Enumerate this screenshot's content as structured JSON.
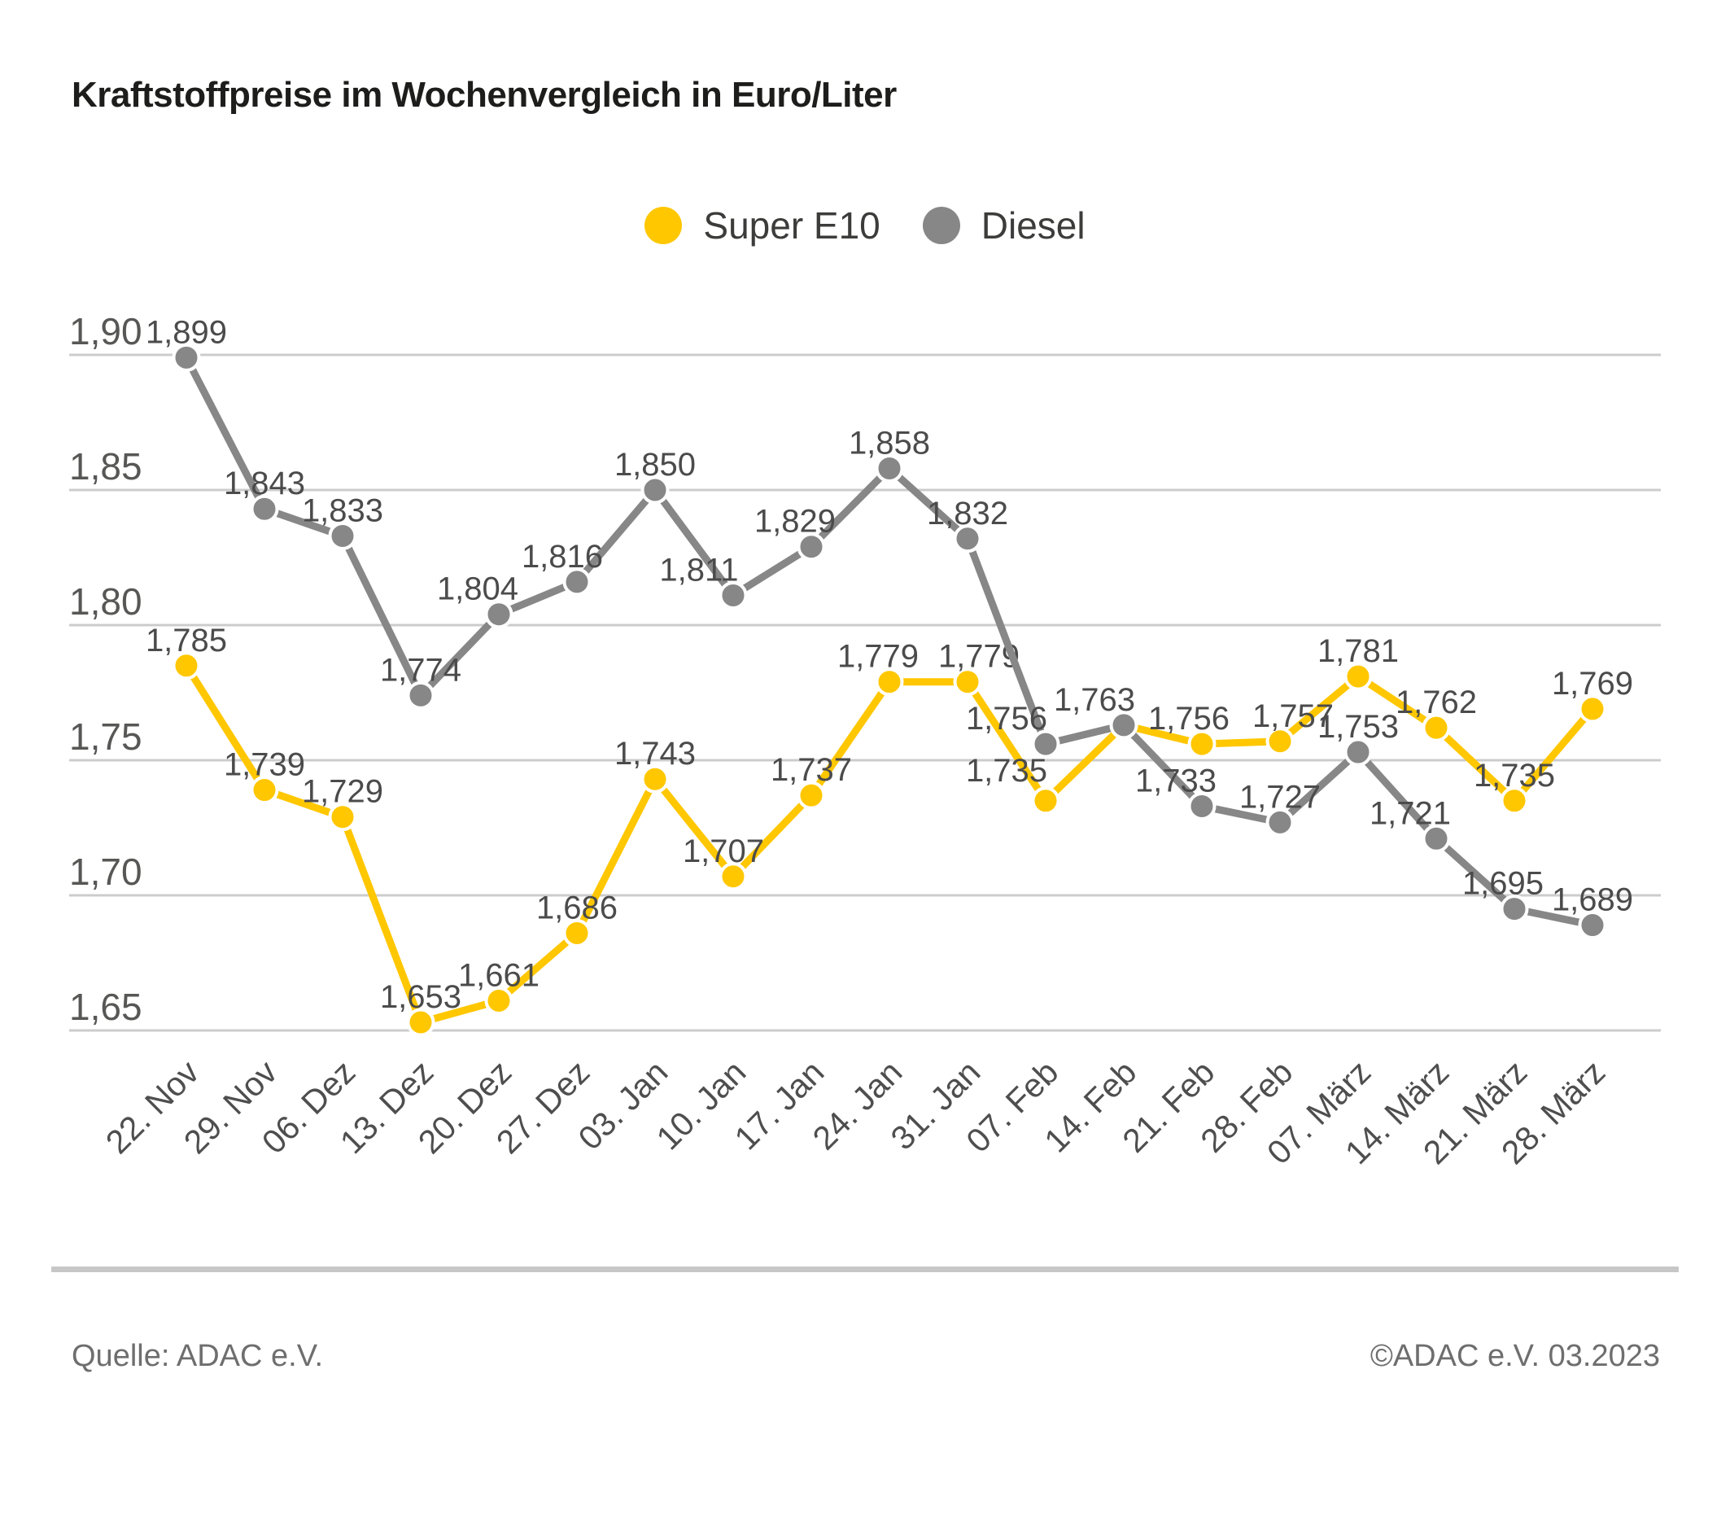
{
  "title": "Kraftstoffpreise im Wochenvergleich in Euro/Liter",
  "footer": {
    "source": "Quelle: ADAC e.V.",
    "copyright": "©ADAC e.V. 03.2023"
  },
  "colors": {
    "super_e10": "#FFC700",
    "diesel": "#878787",
    "gridline": "#cccccc",
    "axis_text": "#4e4e4e",
    "data_label": "#4b4b4b"
  },
  "chart_data": {
    "type": "line",
    "title": "Kraftstoffpreise im Wochenvergleich in Euro/Liter",
    "xlabel": "",
    "ylabel": "Euro/Liter",
    "grid": true,
    "legend_position": "top-center",
    "ylim": [
      1.63,
      1.92
    ],
    "y_ticks": {
      "values": [
        1.9,
        1.85,
        1.8,
        1.75,
        1.7,
        1.65
      ],
      "labels": [
        "1,90",
        "1,85",
        "1,80",
        "1,75",
        "1,70",
        "1,65"
      ]
    },
    "categories": [
      "22. Nov",
      "29. Nov",
      "06. Dez",
      "13. Dez",
      "20. Dez",
      "27. Dez",
      "03. Jan",
      "10. Jan",
      "17. Jan",
      "24. Jan",
      "31. Jan",
      "07. Feb",
      "14. Feb",
      "21. Feb",
      "28. Feb",
      "07. März",
      "14. März",
      "21. März",
      "28. März"
    ],
    "series": [
      {
        "name": "Super E10",
        "color": "#FFC700",
        "values": [
          1.785,
          1.739,
          1.729,
          1.653,
          1.661,
          1.686,
          1.743,
          1.707,
          1.737,
          1.779,
          1.779,
          1.735,
          1.763,
          1.756,
          1.757,
          1.781,
          1.762,
          1.735,
          1.769
        ],
        "labels": [
          "1,785",
          "1,739",
          "1,729",
          "1,653",
          "1,661",
          "1,686",
          "1,743",
          "1,707",
          "1,737",
          "1,779",
          "1,779",
          "1,735",
          "",
          "1,756",
          "1,757",
          "1,781",
          "1,762",
          "1,735",
          "1,769"
        ],
        "label_skip": [
          12
        ]
      },
      {
        "name": "Diesel",
        "color": "#878787",
        "values": [
          1.899,
          1.843,
          1.833,
          1.774,
          1.804,
          1.816,
          1.85,
          1.811,
          1.829,
          1.858,
          1.832,
          1.756,
          1.763,
          1.733,
          1.727,
          1.753,
          1.721,
          1.695,
          1.689
        ],
        "labels": [
          "1,899",
          "1,843",
          "1,833",
          "1,774",
          "1,804",
          "1,816",
          "1,850",
          "1,811",
          "1,829",
          "1,858",
          "1,832",
          "1,756",
          "1,763",
          "1,733",
          "1,727",
          "1,753",
          "1,721",
          "1,695",
          "1,689"
        ],
        "label_skip": []
      }
    ]
  }
}
